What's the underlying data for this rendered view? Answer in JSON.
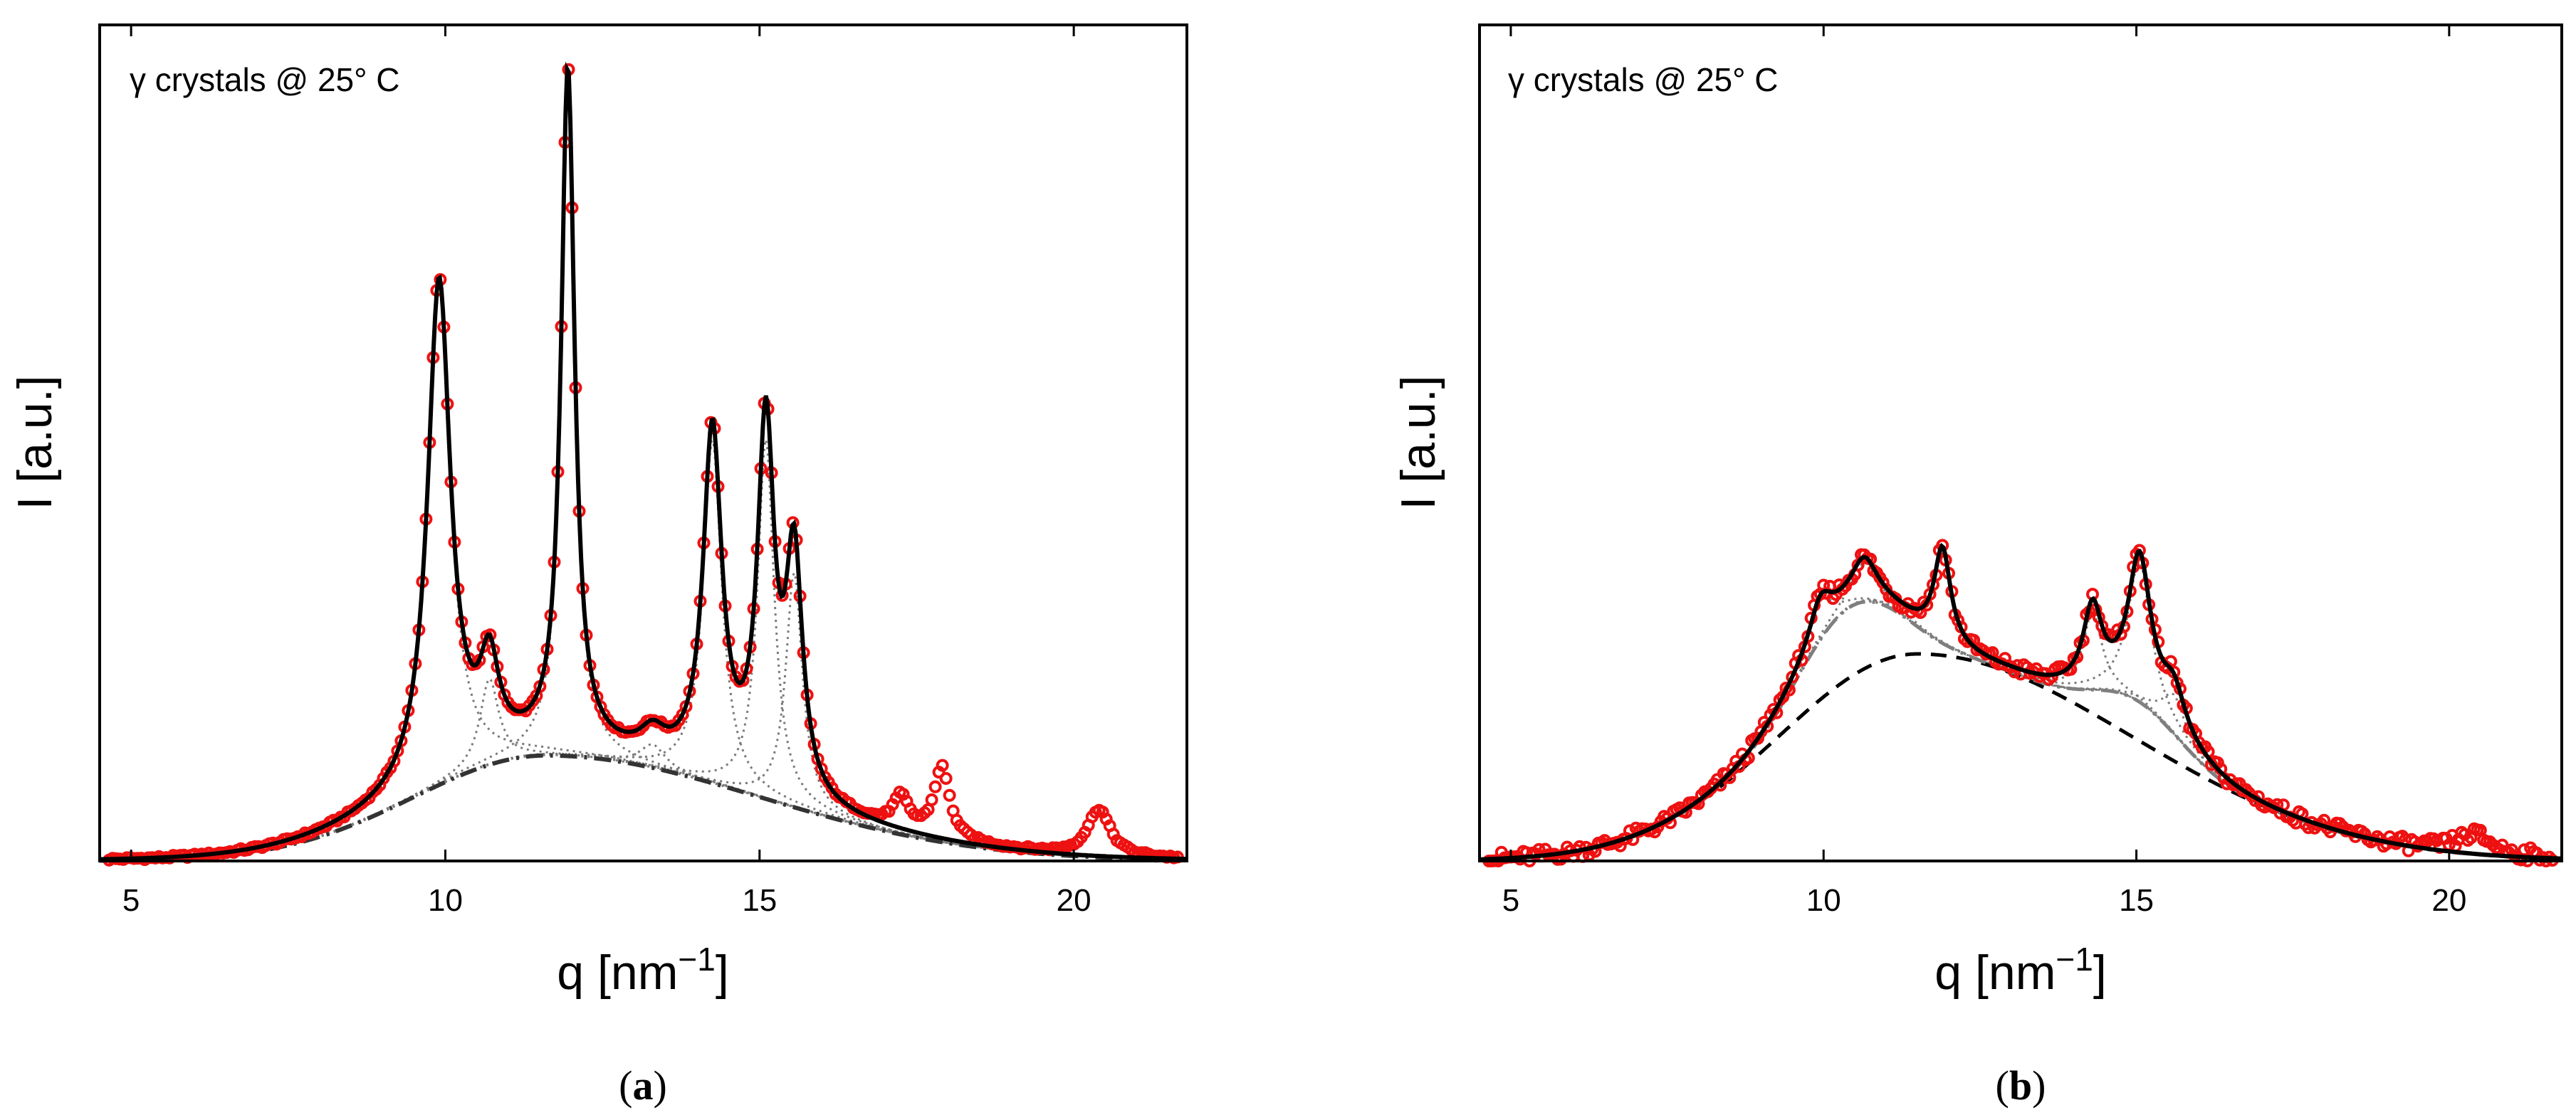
{
  "chart_data": [
    {
      "type": "line",
      "panel_caption": "a",
      "annotation": "γ crystals @ 25° C",
      "xlabel_base": "q [nm",
      "xlabel_exp": "−1",
      "xlabel_close": "]",
      "ylabel": "I [a.u.]",
      "xlim": [
        4.5,
        21.8
      ],
      "ylim": [
        0,
        1.07
      ],
      "x_ticks": [
        5,
        10,
        15,
        20
      ],
      "y_ticks": [],
      "peaks": [
        {
          "center": 9.9,
          "amplitude": 0.64,
          "width": 0.22
        },
        {
          "center": 10.7,
          "amplitude": 0.11,
          "width": 0.18
        },
        {
          "center": 11.95,
          "amplitude": 0.87,
          "width": 0.13
        },
        {
          "center": 13.3,
          "amplitude": 0.03,
          "width": 0.25
        },
        {
          "center": 14.25,
          "amplitude": 0.44,
          "width": 0.18
        },
        {
          "center": 15.1,
          "amplitude": 0.46,
          "width": 0.16
        },
        {
          "center": 15.55,
          "amplitude": 0.3,
          "width": 0.16
        }
      ],
      "extra_data_peaks": [
        {
          "center": 17.25,
          "amplitude": 0.04,
          "width": 0.15
        },
        {
          "center": 17.9,
          "amplitude": 0.09,
          "width": 0.15
        },
        {
          "center": 20.4,
          "amplitude": 0.06,
          "width": 0.22
        }
      ],
      "amorphous": {
        "center": 11.6,
        "amplitude": 0.135,
        "sigma_left": 2.1,
        "sigma_right": 3.4
      },
      "amorphous2": null,
      "series": [
        {
          "name": "experimental data",
          "style": "red open circles",
          "color": "#ee1111"
        },
        {
          "name": "total fit",
          "style": "solid",
          "color": "#000000"
        },
        {
          "name": "crystalline peaks",
          "style": "dotted",
          "color": "#7a7a7a"
        },
        {
          "name": "amorphous halo",
          "style": "dash-dot",
          "color": "#333333"
        }
      ]
    },
    {
      "type": "line",
      "panel_caption": "b",
      "annotation": "γ crystals @ 25° C",
      "xlabel_base": "q [nm",
      "xlabel_exp": "−1",
      "xlabel_close": "]",
      "ylabel": "I [a.u.]",
      "xlim": [
        4.5,
        21.8
      ],
      "ylim": [
        0,
        1.07
      ],
      "x_ticks": [
        5,
        10,
        15,
        20
      ],
      "y_ticks": [],
      "peaks": [
        {
          "center": 9.95,
          "amplitude": 0.05,
          "width": 0.22
        },
        {
          "center": 10.65,
          "amplitude": 0.05,
          "width": 0.25
        },
        {
          "center": 11.9,
          "amplitude": 0.12,
          "width": 0.16
        },
        {
          "center": 14.3,
          "amplitude": 0.1,
          "width": 0.18
        },
        {
          "center": 15.05,
          "amplitude": 0.18,
          "width": 0.22
        },
        {
          "center": 15.6,
          "amplitude": 0.05,
          "width": 0.22
        }
      ],
      "extra_data_peaks": [
        {
          "center": 20.4,
          "amplitude": 0.025,
          "width": 0.35
        }
      ],
      "amorphous": {
        "center": 11.5,
        "amplitude": 0.265,
        "sigma_left": 2.2,
        "sigma_right": 3.4
      },
      "amorphous2": {
        "shoulder_center": 10.4,
        "shoulder_amplitude": 0.09,
        "shoulder_width": 0.8,
        "shoulder2_center": 15.0,
        "shoulder2_amplitude": 0.05,
        "shoulder2_width": 0.7
      },
      "series": [
        {
          "name": "experimental data",
          "style": "red open circles",
          "color": "#ee1111"
        },
        {
          "name": "total fit",
          "style": "solid",
          "color": "#000000"
        },
        {
          "name": "crystalline peaks",
          "style": "dotted",
          "color": "#7a7a7a"
        },
        {
          "name": "amorphous halo 1",
          "style": "dashed",
          "color": "#000000"
        },
        {
          "name": "amorphous halo 2",
          "style": "dash-dot",
          "color": "#7f7f7f"
        }
      ]
    }
  ]
}
